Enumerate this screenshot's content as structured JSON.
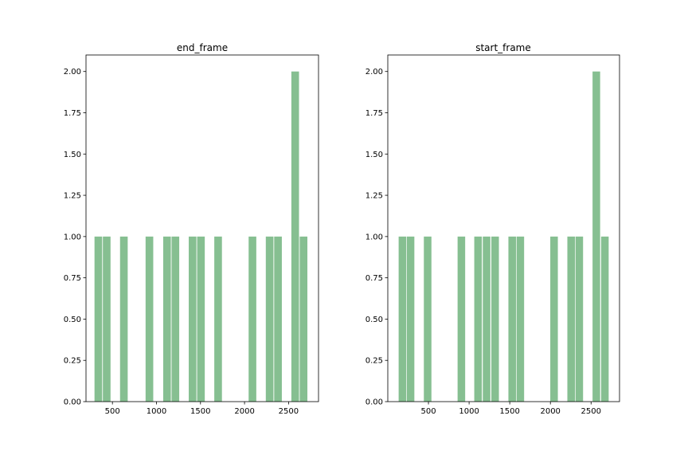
{
  "colors": {
    "bar": "#86bf91",
    "axis": "#000000",
    "background": "#ffffff"
  },
  "chart_data": [
    {
      "type": "bar",
      "title": "end_frame",
      "xlabel": "",
      "ylabel": "",
      "xlim": [
        200,
        2840
      ],
      "ylim": [
        0,
        2.1
      ],
      "grid": false,
      "x_ticks": [
        500,
        1000,
        1500,
        2000,
        2500
      ],
      "x_tick_labels": [
        "500",
        "1000",
        "1500",
        "2000",
        "2500"
      ],
      "y_ticks": [
        0,
        0.25,
        0.5,
        0.75,
        1.0,
        1.25,
        1.5,
        1.75,
        2.0
      ],
      "y_tick_labels": [
        "0.00",
        "0.25",
        "0.50",
        "0.75",
        "1.00",
        "1.25",
        "1.50",
        "1.75",
        "2.00"
      ],
      "bin_width": 96,
      "bars": [
        {
          "x": 340,
          "value": 1
        },
        {
          "x": 435,
          "value": 1
        },
        {
          "x": 630,
          "value": 1
        },
        {
          "x": 920,
          "value": 1
        },
        {
          "x": 1120,
          "value": 1
        },
        {
          "x": 1215,
          "value": 1
        },
        {
          "x": 1410,
          "value": 1
        },
        {
          "x": 1505,
          "value": 1
        },
        {
          "x": 1700,
          "value": 1
        },
        {
          "x": 2090,
          "value": 1
        },
        {
          "x": 2285,
          "value": 1
        },
        {
          "x": 2380,
          "value": 1
        },
        {
          "x": 2575,
          "value": 2
        },
        {
          "x": 2670,
          "value": 1
        }
      ]
    },
    {
      "type": "bar",
      "title": "start_frame",
      "xlabel": "",
      "ylabel": "",
      "xlim": [
        0,
        2850
      ],
      "ylim": [
        0,
        2.1
      ],
      "grid": false,
      "x_ticks": [
        500,
        1000,
        1500,
        2000,
        2500
      ],
      "x_tick_labels": [
        "500",
        "1000",
        "1500",
        "2000",
        "2500"
      ],
      "y_ticks": [
        0,
        0.25,
        0.5,
        0.75,
        1.0,
        1.25,
        1.5,
        1.75,
        2.0
      ],
      "y_tick_labels": [
        "0.00",
        "0.25",
        "0.50",
        "0.75",
        "1.00",
        "1.25",
        "1.50",
        "1.75",
        "2.00"
      ],
      "bin_width": 103,
      "bars": [
        {
          "x": 180,
          "value": 1
        },
        {
          "x": 280,
          "value": 1
        },
        {
          "x": 490,
          "value": 1
        },
        {
          "x": 905,
          "value": 1
        },
        {
          "x": 1110,
          "value": 1
        },
        {
          "x": 1215,
          "value": 1
        },
        {
          "x": 1320,
          "value": 1
        },
        {
          "x": 1530,
          "value": 1
        },
        {
          "x": 1630,
          "value": 1
        },
        {
          "x": 2045,
          "value": 1
        },
        {
          "x": 2255,
          "value": 1
        },
        {
          "x": 2355,
          "value": 1
        },
        {
          "x": 2565,
          "value": 2
        },
        {
          "x": 2670,
          "value": 1
        }
      ]
    }
  ]
}
